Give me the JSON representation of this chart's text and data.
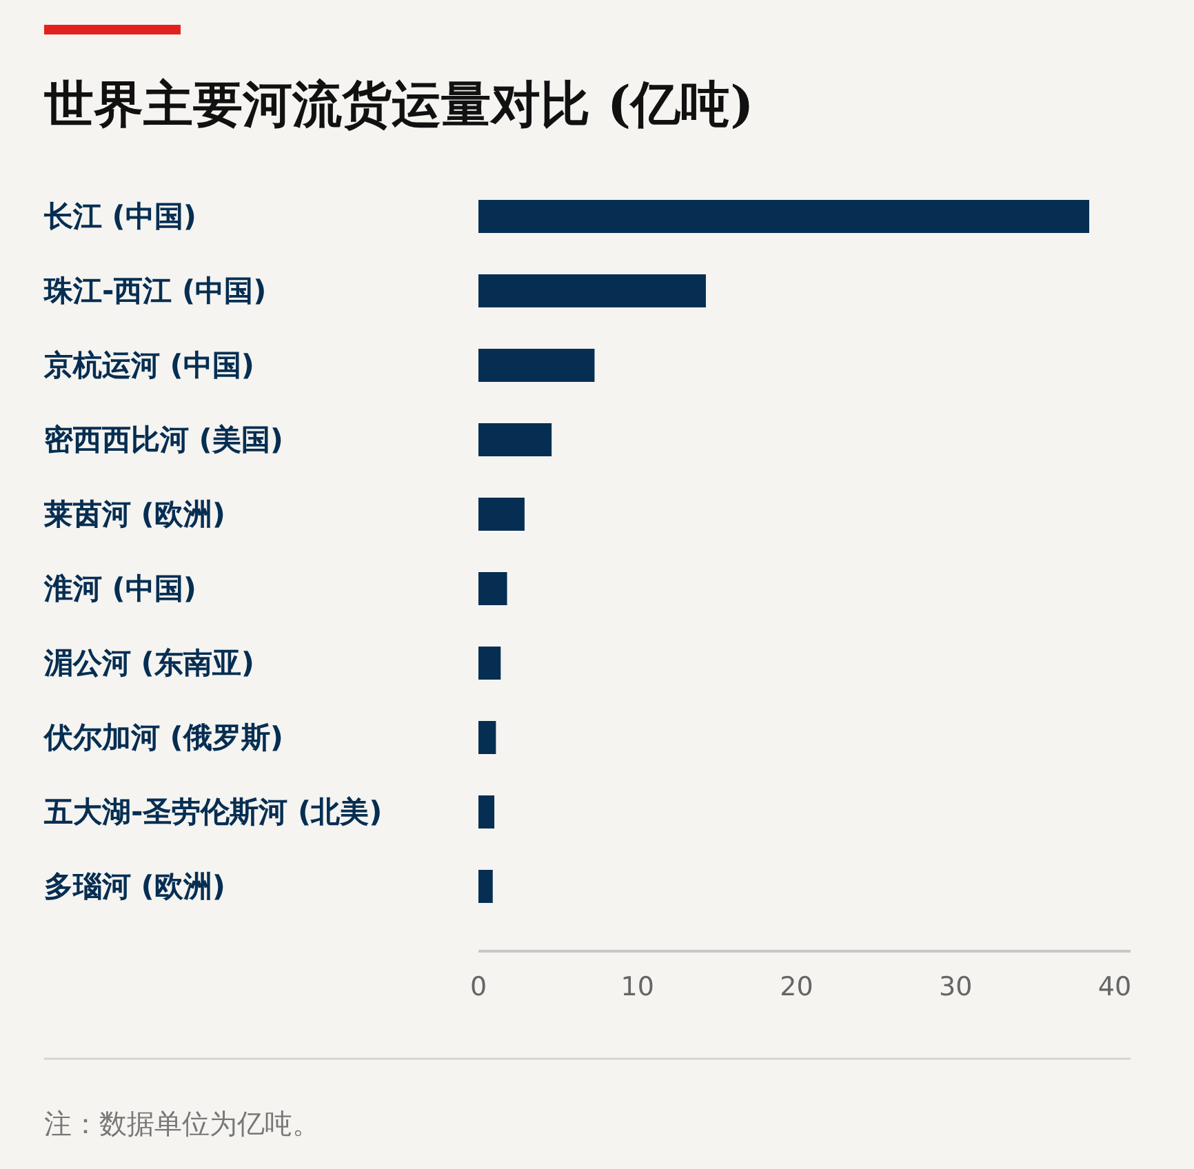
{
  "chart_data": {
    "type": "bar",
    "orientation": "horizontal",
    "title": "世界主要河流货运量对比 (亿吨)",
    "categories": [
      "长江 (中国)",
      "珠江-西江 (中国)",
      "京杭运河 (中国)",
      "密西西比河 (美国)",
      "莱茵河 (欧洲)",
      "淮河 (中国)",
      "湄公河 (东南亚)",
      "伏尔加河 (俄罗斯)",
      "五大湖-圣劳伦斯河 (北美)",
      "多瑙河 (欧洲)"
    ],
    "values": [
      38.4,
      14.3,
      7.3,
      4.6,
      2.9,
      1.8,
      1.4,
      1.1,
      1.0,
      0.9
    ],
    "color": "#062e52",
    "xlim": [
      0,
      41
    ],
    "xticks": [
      0,
      10,
      20,
      30,
      40
    ],
    "annotations": [
      "注：数据单位为亿吨。"
    ]
  }
}
